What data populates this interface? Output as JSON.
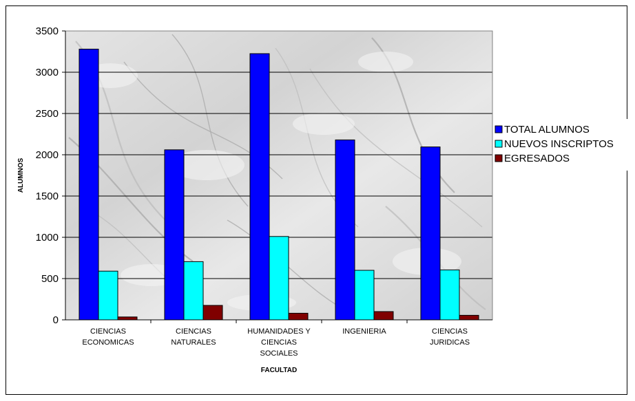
{
  "chart_data": {
    "type": "bar",
    "title": "",
    "xlabel": "FACULTAD",
    "ylabel": "ALUMNOS",
    "ylim": [
      0,
      3500
    ],
    "yticks": [
      0,
      500,
      1000,
      1500,
      2000,
      2500,
      3000,
      3500
    ],
    "grid": true,
    "legend_position": "right",
    "categories": [
      [
        "CIENCIAS",
        "ECONOMICAS"
      ],
      [
        "CIENCIAS",
        "NATURALES"
      ],
      [
        "HUMANIDADES Y",
        "CIENCIAS",
        "SOCIALES"
      ],
      [
        "INGENIERIA"
      ],
      [
        "CIENCIAS",
        "JURIDICAS"
      ]
    ],
    "series": [
      {
        "name": "TOTAL ALUMNOS",
        "color": "#0000FF",
        "values": [
          3280,
          2060,
          3225,
          2180,
          2095
        ]
      },
      {
        "name": "NUEVOS INSCRIPTOS",
        "color": "#00FFFF",
        "values": [
          590,
          705,
          1010,
          600,
          605
        ]
      },
      {
        "name": "EGRESADOS",
        "color": "#800000",
        "values": [
          35,
          175,
          80,
          100,
          55
        ]
      }
    ]
  }
}
